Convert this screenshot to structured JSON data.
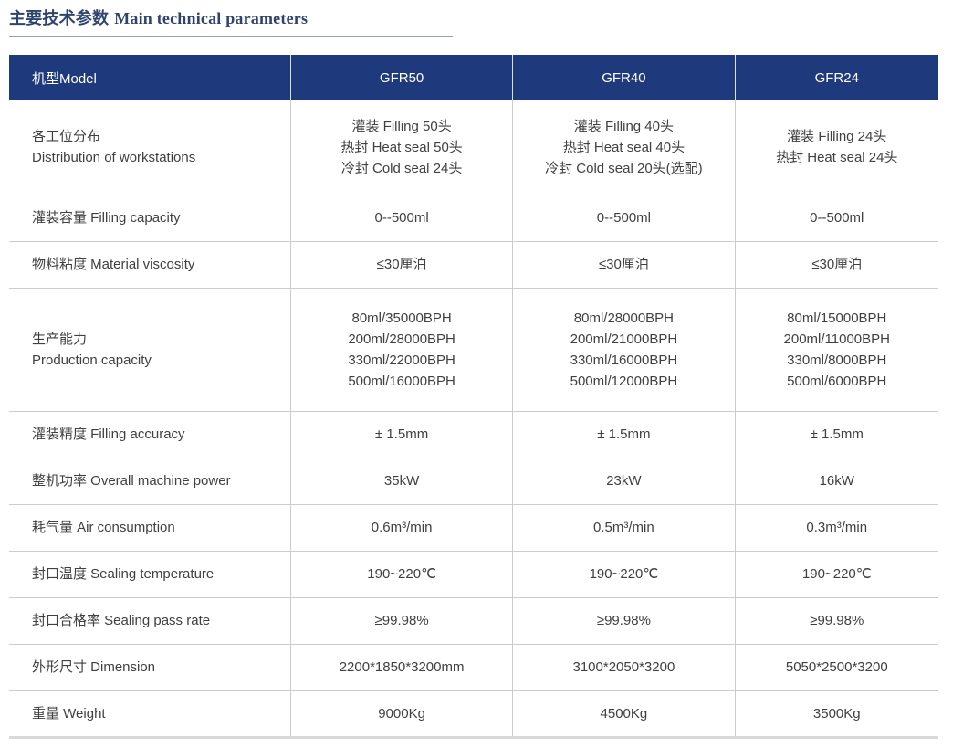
{
  "title": {
    "zh": "主要技术参数",
    "en": "Main technical parameters"
  },
  "colors": {
    "header_bg": "#1e3a7d",
    "header_text": "#ffffff",
    "title_text": "#2e4370",
    "title_underline": "#97a1b6",
    "body_text": "#404040",
    "grid_line": "#cccccc",
    "bottom_border": "#d9d9d9"
  },
  "table": {
    "header": {
      "model_label": "机型Model",
      "models": [
        "GFR50",
        "GFR40",
        "GFR24"
      ]
    },
    "rows": [
      {
        "label_lines": [
          "各工位分布",
          "Distribution of workstations"
        ],
        "values": [
          [
            "灌装 Filling 50头",
            "热封 Heat seal 50头",
            "冷封 Cold seal 24头"
          ],
          [
            "灌装 Filling 40头",
            "热封 Heat seal 40头",
            "冷封 Cold seal 20头(选配)"
          ],
          [
            "灌装 Filling 24头",
            "热封 Heat seal 24头"
          ]
        ]
      },
      {
        "label_lines": [
          "灌装容量 Filling capacity"
        ],
        "values": [
          [
            "0--500ml"
          ],
          [
            "0--500ml"
          ],
          [
            "0--500ml"
          ]
        ]
      },
      {
        "label_lines": [
          "物料粘度 Material viscosity"
        ],
        "values": [
          [
            "≤30厘泊"
          ],
          [
            "≤30厘泊"
          ],
          [
            "≤30厘泊"
          ]
        ]
      },
      {
        "label_lines": [
          "生产能力",
          "Production capacity"
        ],
        "values": [
          [
            "80ml/35000BPH",
            "200ml/28000BPH",
            "330ml/22000BPH",
            "500ml/16000BPH"
          ],
          [
            "80ml/28000BPH",
            "200ml/21000BPH",
            "330ml/16000BPH",
            "500ml/12000BPH"
          ],
          [
            "80ml/15000BPH",
            "200ml/11000BPH",
            "330ml/8000BPH",
            "500ml/6000BPH"
          ]
        ]
      },
      {
        "label_lines": [
          "灌装精度 Filling accuracy"
        ],
        "values": [
          [
            "± 1.5mm"
          ],
          [
            "± 1.5mm"
          ],
          [
            "± 1.5mm"
          ]
        ]
      },
      {
        "label_lines": [
          "整机功率 Overall machine power"
        ],
        "values": [
          [
            "35kW"
          ],
          [
            "23kW"
          ],
          [
            "16kW"
          ]
        ]
      },
      {
        "label_lines": [
          "耗气量 Air consumption"
        ],
        "values": [
          [
            "0.6m³/min"
          ],
          [
            "0.5m³/min"
          ],
          [
            "0.3m³/min"
          ]
        ]
      },
      {
        "label_lines": [
          "封口温度 Sealing temperature"
        ],
        "values": [
          [
            "190~220℃"
          ],
          [
            "190~220℃"
          ],
          [
            "190~220℃"
          ]
        ]
      },
      {
        "label_lines": [
          "封口合格率 Sealing pass rate"
        ],
        "values": [
          [
            "≥99.98%"
          ],
          [
            "≥99.98%"
          ],
          [
            "≥99.98%"
          ]
        ]
      },
      {
        "label_lines": [
          "外形尺寸 Dimension"
        ],
        "values": [
          [
            "2200*1850*3200mm"
          ],
          [
            "3100*2050*3200"
          ],
          [
            "5050*2500*3200"
          ]
        ]
      },
      {
        "label_lines": [
          "重量 Weight"
        ],
        "values": [
          [
            "9000Kg"
          ],
          [
            "4500Kg"
          ],
          [
            "3500Kg"
          ]
        ]
      }
    ]
  }
}
